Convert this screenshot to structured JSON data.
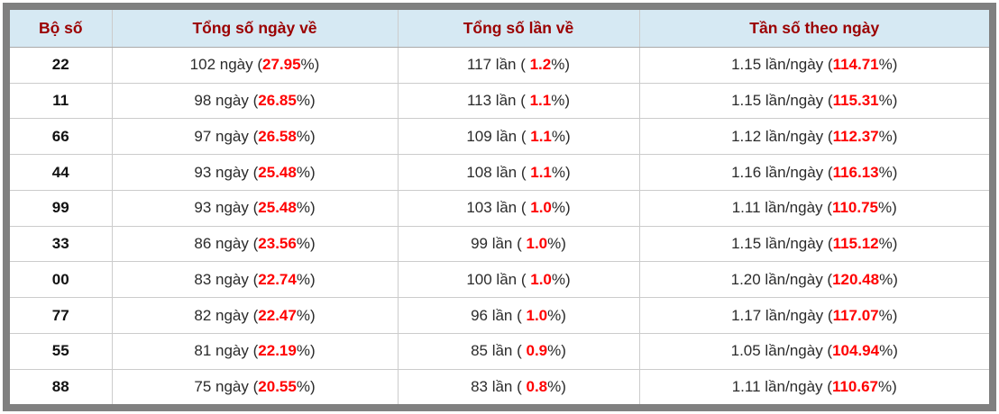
{
  "colors": {
    "frame_gray": "#808080",
    "header_bg": "#d6e9f3",
    "header_text": "#9b0000",
    "highlight_red": "#ff0000",
    "border_light": "#cccccc",
    "border_header": "#aaaaaa",
    "body_text": "#2b2b2b",
    "pair_text": "#111111"
  },
  "table": {
    "headers": [
      "Bộ số",
      "Tổng số ngày về",
      "Tổng số lần về",
      "Tần số theo ngày"
    ],
    "rows": [
      {
        "pair": "22",
        "days": {
          "pre": "102 ngày (",
          "red": "27.95",
          "post": "%)"
        },
        "times": {
          "pre": "117 lần ( ",
          "red": "1.2",
          "post": "%)"
        },
        "freq": {
          "pre": "1.15 lần/ngày (",
          "red": "114.71",
          "post": "%)"
        }
      },
      {
        "pair": "11",
        "days": {
          "pre": "98 ngày (",
          "red": "26.85",
          "post": "%)"
        },
        "times": {
          "pre": "113 lần ( ",
          "red": "1.1",
          "post": "%)"
        },
        "freq": {
          "pre": "1.15 lần/ngày (",
          "red": "115.31",
          "post": "%)"
        }
      },
      {
        "pair": "66",
        "days": {
          "pre": "97 ngày (",
          "red": "26.58",
          "post": "%)"
        },
        "times": {
          "pre": "109 lần ( ",
          "red": "1.1",
          "post": "%)"
        },
        "freq": {
          "pre": "1.12 lần/ngày (",
          "red": "112.37",
          "post": "%)"
        }
      },
      {
        "pair": "44",
        "days": {
          "pre": "93 ngày (",
          "red": "25.48",
          "post": "%)"
        },
        "times": {
          "pre": "108 lần ( ",
          "red": "1.1",
          "post": "%)"
        },
        "freq": {
          "pre": "1.16 lần/ngày (",
          "red": "116.13",
          "post": "%)"
        }
      },
      {
        "pair": "99",
        "days": {
          "pre": "93 ngày (",
          "red": "25.48",
          "post": "%)"
        },
        "times": {
          "pre": "103 lần ( ",
          "red": "1.0",
          "post": "%)"
        },
        "freq": {
          "pre": "1.11 lần/ngày (",
          "red": "110.75",
          "post": "%)"
        }
      },
      {
        "pair": "33",
        "days": {
          "pre": "86 ngày (",
          "red": "23.56",
          "post": "%)"
        },
        "times": {
          "pre": "99 lần ( ",
          "red": "1.0",
          "post": "%)"
        },
        "freq": {
          "pre": "1.15 lần/ngày (",
          "red": "115.12",
          "post": "%)"
        }
      },
      {
        "pair": "00",
        "days": {
          "pre": "83 ngày (",
          "red": "22.74",
          "post": "%)"
        },
        "times": {
          "pre": "100 lần ( ",
          "red": "1.0",
          "post": "%)"
        },
        "freq": {
          "pre": "1.20 lần/ngày (",
          "red": "120.48",
          "post": "%)"
        }
      },
      {
        "pair": "77",
        "days": {
          "pre": "82 ngày (",
          "red": "22.47",
          "post": "%)"
        },
        "times": {
          "pre": "96 lần ( ",
          "red": "1.0",
          "post": "%)"
        },
        "freq": {
          "pre": "1.17 lần/ngày (",
          "red": "117.07",
          "post": "%)"
        }
      },
      {
        "pair": "55",
        "days": {
          "pre": "81 ngày (",
          "red": "22.19",
          "post": "%)"
        },
        "times": {
          "pre": "85 lần ( ",
          "red": "0.9",
          "post": "%)"
        },
        "freq": {
          "pre": "1.05 lần/ngày (",
          "red": "104.94",
          "post": "%)"
        }
      },
      {
        "pair": "88",
        "days": {
          "pre": "75 ngày (",
          "red": "20.55",
          "post": "%)"
        },
        "times": {
          "pre": "83 lần ( ",
          "red": "0.8",
          "post": "%)"
        },
        "freq": {
          "pre": "1.11 lần/ngày (",
          "red": "110.67",
          "post": "%)"
        }
      }
    ]
  }
}
